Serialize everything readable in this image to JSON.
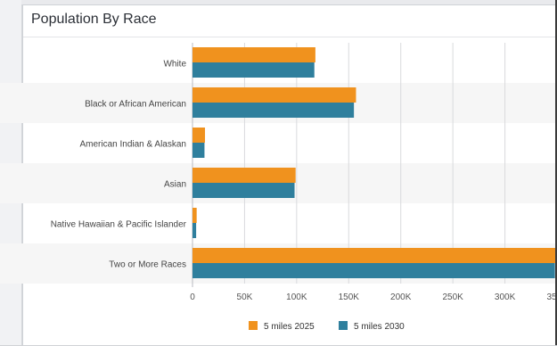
{
  "page": {
    "panel_title": "Population By Race"
  },
  "chart_data": {
    "type": "bar",
    "orientation": "horizontal",
    "title": "Population By Race",
    "categories": [
      "White",
      "Black or African American",
      "American Indian & Alaskan",
      "Asian",
      "Native Hawaiian & Pacific Islander",
      "Two or More Races"
    ],
    "series": [
      {
        "name": "5 miles 2025",
        "color": "#f0921e",
        "values": [
          118000,
          157000,
          12000,
          99000,
          4000,
          352000
        ]
      },
      {
        "name": "5 miles 2030",
        "color": "#2f7f9d",
        "values": [
          117000,
          155000,
          11500,
          98000,
          3500,
          348000
        ]
      }
    ],
    "x_ticks": [
      "0",
      "50K",
      "100K",
      "150K",
      "200K",
      "250K",
      "300K",
      "35"
    ],
    "xlim": [
      0,
      350000
    ],
    "grid": true,
    "legend_position": "bottom"
  }
}
